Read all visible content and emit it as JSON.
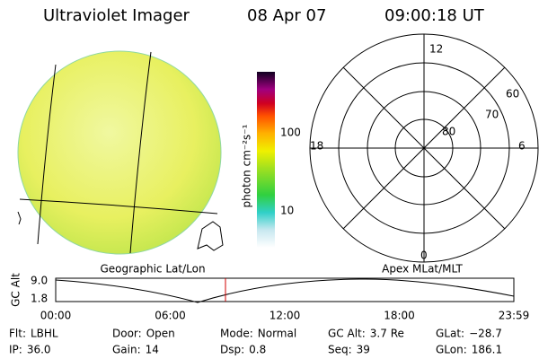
{
  "header": {
    "title": "Ultraviolet Imager",
    "date": "08 Apr 07",
    "time": "09:00:18 UT"
  },
  "colorbar": {
    "label": "photon cm⁻²s⁻¹",
    "ticks": [
      "100",
      "10"
    ]
  },
  "polar": {
    "hours": [
      "12",
      "18",
      "6",
      "0"
    ],
    "latitudes": [
      "60",
      "70",
      "80"
    ]
  },
  "panels": {
    "left": "Geographic Lat/Lon",
    "right": "Apex MLat/MLT"
  },
  "altitude": {
    "ylabel": "GC Alt",
    "yticks": [
      "9.0",
      "1.8"
    ],
    "xticks": [
      "00:00",
      "06:00",
      "12:00",
      "18:00",
      "23:59"
    ]
  },
  "footer": {
    "rows": [
      [
        {
          "label": "Flt:",
          "value": "LBHL"
        },
        {
          "label": "Door:",
          "value": "Open"
        },
        {
          "label": "Mode:",
          "value": "Normal"
        },
        {
          "label": "GC Alt:",
          "value": "3.7 Re"
        },
        {
          "label": "GLat:",
          "value": "−28.7"
        }
      ],
      [
        {
          "label": "IP:",
          "value": "36.0"
        },
        {
          "label": "Gain:",
          "value": "14"
        },
        {
          "label": "Dsp:",
          "value": "0.8"
        },
        {
          "label": "Seq:",
          "value": "39"
        },
        {
          "label": "GLon:",
          "value": "186.1"
        }
      ]
    ]
  }
}
